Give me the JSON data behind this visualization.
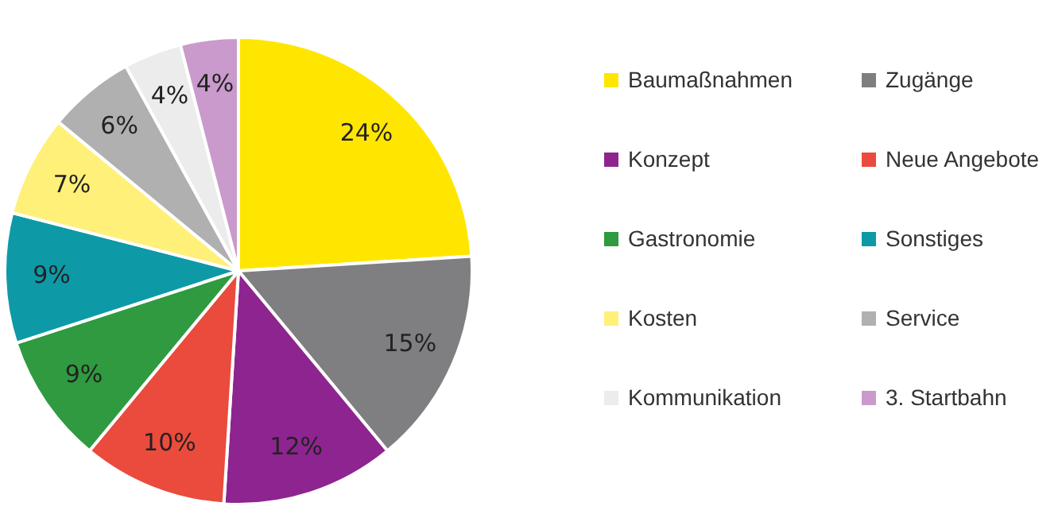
{
  "chart_data": {
    "type": "pie",
    "categories": [
      "Baumaßnahmen",
      "Zugänge",
      "Konzept",
      "Neue Angebote",
      "Gastronomie",
      "Sonstiges",
      "Kosten",
      "Service",
      "Kommunikation",
      "3. Startbahn"
    ],
    "values": [
      24,
      15,
      12,
      10,
      9,
      9,
      7,
      6,
      4,
      4
    ],
    "value_labels": [
      "24%",
      "15%",
      "12%",
      "10%",
      "9%",
      "9%",
      "7%",
      "6%",
      "4%",
      "4%"
    ],
    "colors": [
      "#ffe600",
      "#7f7f82",
      "#8e2490",
      "#ea4b3c",
      "#2f9a3f",
      "#0d9aa6",
      "#fff07a",
      "#b0b0b0",
      "#ececec",
      "#c99acb"
    ],
    "legend": "right"
  }
}
